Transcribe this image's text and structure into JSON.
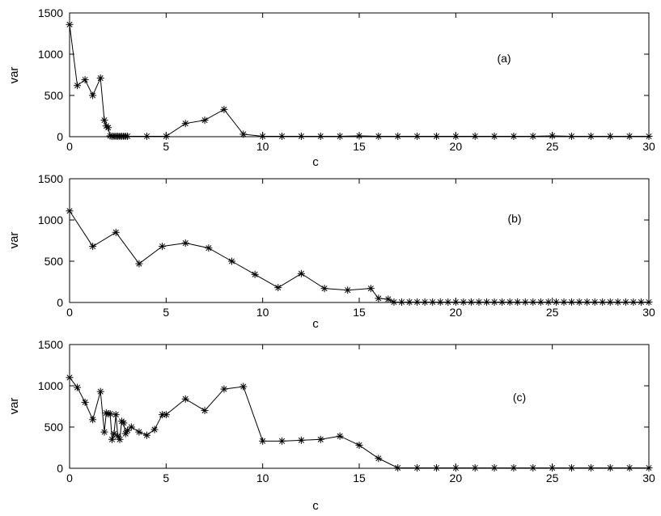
{
  "chart_data": [
    {
      "type": "line",
      "panel_label": "(a)",
      "xlabel": "c",
      "ylabel": "var",
      "xlim": [
        0,
        30
      ],
      "ylim": [
        0,
        1500
      ],
      "xticks": [
        0,
        5,
        10,
        15,
        20,
        25,
        30
      ],
      "yticks": [
        0,
        500,
        1000,
        1500
      ],
      "marker": "asterisk",
      "grid": false,
      "color": "#000000",
      "x": [
        0,
        0.4,
        0.8,
        1.2,
        1.6,
        1.8,
        1.9,
        2.0,
        2.1,
        2.2,
        2.3,
        2.4,
        2.5,
        2.6,
        2.7,
        2.8,
        2.9,
        3.0,
        4,
        5,
        6,
        7,
        8,
        9,
        10,
        11,
        12,
        13,
        14,
        15,
        16,
        17,
        18,
        19,
        20,
        21,
        22,
        23,
        24,
        25,
        26,
        27,
        28,
        29,
        30
      ],
      "y": [
        1360,
        620,
        690,
        500,
        710,
        200,
        130,
        110,
        10,
        5,
        5,
        5,
        5,
        5,
        5,
        5,
        5,
        5,
        5,
        5,
        160,
        200,
        330,
        30,
        5,
        5,
        5,
        5,
        5,
        10,
        5,
        5,
        5,
        5,
        5,
        5,
        5,
        5,
        5,
        10,
        5,
        5,
        5,
        5,
        5
      ]
    },
    {
      "type": "line",
      "panel_label": "(b)",
      "xlabel": "c",
      "ylabel": "var",
      "xlim": [
        0,
        30
      ],
      "ylim": [
        0,
        1500
      ],
      "xticks": [
        0,
        5,
        10,
        15,
        20,
        25,
        30
      ],
      "yticks": [
        0,
        500,
        1000,
        1500
      ],
      "marker": "asterisk",
      "grid": false,
      "color": "#000000",
      "x": [
        0,
        1.2,
        2.4,
        3.6,
        4.8,
        6.0,
        7.2,
        8.4,
        9.6,
        10.8,
        12.0,
        13.2,
        14.4,
        15.6,
        16.0,
        16.5,
        16.8,
        17.2,
        17.6,
        18.0,
        18.4,
        18.8,
        19.2,
        19.6,
        20.0,
        20.4,
        20.8,
        21.2,
        21.6,
        22.0,
        22.4,
        22.8,
        23.2,
        23.6,
        24.0,
        24.4,
        24.8,
        25.2,
        25.6,
        26.0,
        26.4,
        26.8,
        27.2,
        27.6,
        28.0,
        28.4,
        28.8,
        29.2,
        29.6,
        30.0
      ],
      "y": [
        1110,
        680,
        850,
        470,
        680,
        720,
        660,
        500,
        340,
        180,
        350,
        170,
        150,
        170,
        50,
        40,
        5,
        5,
        5,
        5,
        5,
        5,
        5,
        5,
        5,
        5,
        5,
        5,
        5,
        5,
        5,
        5,
        5,
        5,
        5,
        5,
        5,
        5,
        5,
        5,
        5,
        5,
        5,
        5,
        5,
        5,
        5,
        5,
        5,
        5
      ]
    },
    {
      "type": "line",
      "panel_label": "(c)",
      "xlabel": "c",
      "ylabel": "var",
      "xlim": [
        0,
        30
      ],
      "ylim": [
        0,
        1500
      ],
      "xticks": [
        0,
        5,
        10,
        15,
        20,
        25,
        30
      ],
      "yticks": [
        0,
        500,
        1000,
        1500
      ],
      "marker": "asterisk",
      "grid": false,
      "color": "#000000",
      "x": [
        0,
        0.4,
        0.8,
        1.2,
        1.6,
        1.8,
        1.9,
        2.0,
        2.1,
        2.2,
        2.3,
        2.4,
        2.5,
        2.6,
        2.7,
        2.8,
        2.9,
        3.0,
        3.2,
        3.6,
        4.0,
        4.4,
        4.8,
        5.0,
        6,
        7,
        8,
        9,
        10,
        11,
        12,
        13,
        14,
        15,
        16,
        17,
        18,
        19,
        20,
        21,
        22,
        23,
        24,
        25,
        26,
        27,
        28,
        29,
        30
      ],
      "y": [
        1100,
        980,
        800,
        590,
        930,
        440,
        670,
        660,
        660,
        350,
        420,
        650,
        390,
        350,
        570,
        550,
        420,
        460,
        500,
        440,
        400,
        470,
        650,
        650,
        840,
        700,
        960,
        990,
        330,
        330,
        340,
        350,
        390,
        280,
        120,
        5,
        5,
        5,
        5,
        5,
        5,
        5,
        5,
        5,
        5,
        5,
        5,
        5,
        5
      ]
    }
  ]
}
